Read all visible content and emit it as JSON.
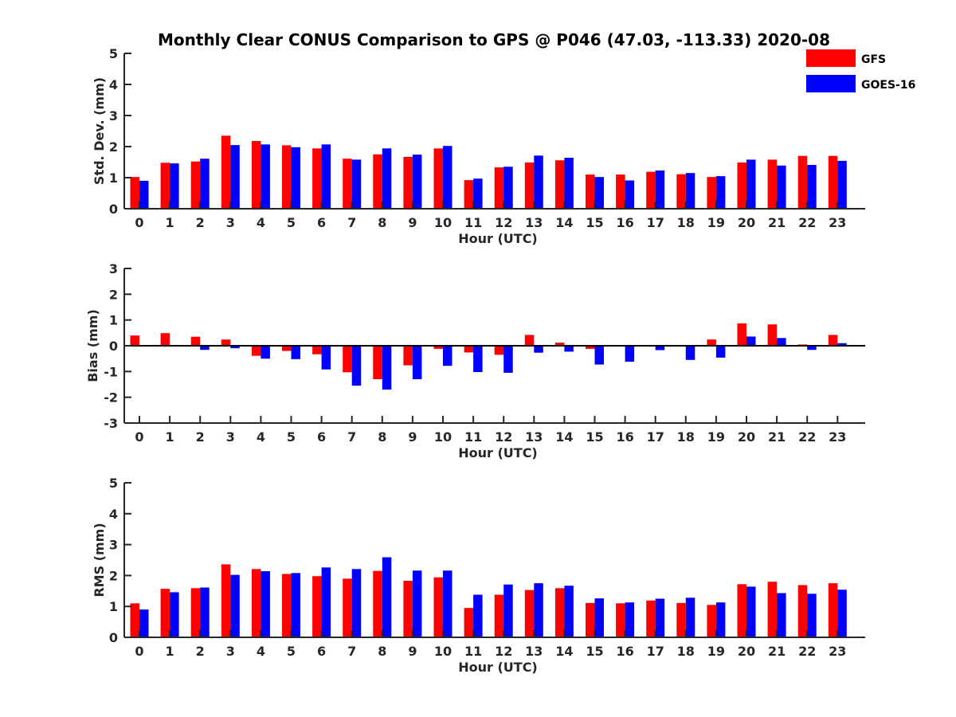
{
  "title": "Monthly Clear CONUS Comparison to GPS @ P046 (47.03, -113.33) 2020-08",
  "legend": [
    {
      "label": "GFS",
      "color": "#ff0000"
    },
    {
      "label": "GOES-16",
      "color": "#0000ff"
    }
  ],
  "chart_data": [
    {
      "type": "bar",
      "name": "std-dev",
      "xlabel": "Hour (UTC)",
      "ylabel": "Std. Dev. (mm)",
      "ylim": [
        0,
        5
      ],
      "yticks": [
        0,
        1,
        2,
        3,
        4,
        5
      ],
      "categories": [
        "0",
        "1",
        "2",
        "3",
        "4",
        "5",
        "6",
        "7",
        "8",
        "9",
        "10",
        "11",
        "12",
        "13",
        "14",
        "15",
        "16",
        "17",
        "18",
        "19",
        "20",
        "21",
        "22",
        "23"
      ],
      "series": [
        {
          "name": "GFS",
          "values": [
            1.02,
            1.48,
            1.52,
            2.35,
            2.18,
            2.04,
            1.94,
            1.61,
            1.75,
            1.67,
            1.94,
            0.92,
            1.33,
            1.49,
            1.56,
            1.1,
            1.1,
            1.19,
            1.11,
            1.02,
            1.49,
            1.58,
            1.7,
            1.7
          ]
        },
        {
          "name": "GOES-16",
          "values": [
            0.9,
            1.46,
            1.61,
            2.05,
            2.07,
            1.98,
            2.07,
            1.58,
            1.94,
            1.74,
            2.02,
            0.97,
            1.35,
            1.71,
            1.64,
            1.02,
            0.91,
            1.23,
            1.15,
            1.05,
            1.58,
            1.39,
            1.41,
            1.54
          ]
        }
      ]
    },
    {
      "type": "bar",
      "name": "bias",
      "xlabel": "Hour (UTC)",
      "ylabel": "Bias (mm)",
      "ylim": [
        -3,
        3
      ],
      "yticks": [
        -3,
        -2,
        -1,
        0,
        1,
        2,
        3
      ],
      "categories": [
        "0",
        "1",
        "2",
        "3",
        "4",
        "5",
        "6",
        "7",
        "8",
        "9",
        "10",
        "11",
        "12",
        "13",
        "14",
        "15",
        "16",
        "17",
        "18",
        "19",
        "20",
        "21",
        "22",
        "23"
      ],
      "series": [
        {
          "name": "GFS",
          "values": [
            0.4,
            0.49,
            0.35,
            0.24,
            -0.39,
            -0.2,
            -0.33,
            -1.03,
            -1.3,
            -0.76,
            -0.12,
            -0.26,
            -0.35,
            0.42,
            0.12,
            -0.12,
            -0.03,
            0.02,
            0.0,
            0.24,
            0.87,
            0.83,
            0.05,
            0.42
          ]
        },
        {
          "name": "GOES-16",
          "values": [
            0.03,
            0.03,
            -0.16,
            -0.1,
            -0.5,
            -0.52,
            -0.92,
            -1.55,
            -1.7,
            -1.3,
            -0.78,
            -1.02,
            -1.05,
            -0.27,
            -0.23,
            -0.73,
            -0.62,
            -0.17,
            -0.55,
            -0.46,
            0.36,
            0.3,
            -0.16,
            0.1
          ]
        }
      ]
    },
    {
      "type": "bar",
      "name": "rms",
      "xlabel": "Hour (UTC)",
      "ylabel": "RMS (mm)",
      "ylim": [
        0,
        5
      ],
      "yticks": [
        0,
        1,
        2,
        3,
        4,
        5
      ],
      "categories": [
        "0",
        "1",
        "2",
        "3",
        "4",
        "5",
        "6",
        "7",
        "8",
        "9",
        "10",
        "11",
        "12",
        "13",
        "14",
        "15",
        "16",
        "17",
        "18",
        "19",
        "20",
        "21",
        "22",
        "23"
      ],
      "series": [
        {
          "name": "GFS",
          "values": [
            1.1,
            1.57,
            1.59,
            2.36,
            2.21,
            2.05,
            1.98,
            1.9,
            2.15,
            1.83,
            1.94,
            0.95,
            1.38,
            1.53,
            1.59,
            1.11,
            1.1,
            1.19,
            1.11,
            1.05,
            1.72,
            1.8,
            1.69,
            1.75
          ]
        },
        {
          "name": "GOES-16",
          "values": [
            0.9,
            1.46,
            1.61,
            2.02,
            2.14,
            2.08,
            2.26,
            2.21,
            2.59,
            2.16,
            2.16,
            1.38,
            1.71,
            1.75,
            1.67,
            1.26,
            1.13,
            1.25,
            1.28,
            1.13,
            1.64,
            1.43,
            1.41,
            1.54
          ]
        }
      ]
    }
  ]
}
